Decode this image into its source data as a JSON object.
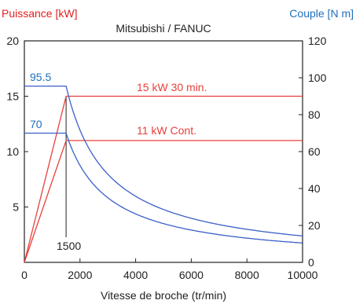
{
  "chart_data": {
    "type": "line",
    "title": "Mitsubishi / FANUC",
    "ylabel_left": "Puissance [kW]",
    "ylabel_right": "Couple [N m]",
    "xlabel": "Vitesse de broche (tr/min)",
    "xlim": [
      0,
      10000
    ],
    "ylim_left": [
      0,
      20
    ],
    "ylim_right": [
      0,
      120
    ],
    "xticks": [
      "0",
      "2000",
      "4000",
      "6000",
      "8000",
      "10000"
    ],
    "yticks_left": [
      "5",
      "10",
      "15",
      "20"
    ],
    "yticks_right": [
      "0",
      "20",
      "40",
      "60",
      "80",
      "100",
      "120"
    ],
    "grid": false,
    "colors": {
      "power": "#e8403a",
      "torque": "#3a5fc8",
      "axis": "#222222",
      "left_label": "#e02020",
      "right_label": "#1f6fc0"
    },
    "annotations": {
      "power_30min": "15 kW 30 min.",
      "power_cont": "11 kW Cont.",
      "torque_30min": "95.5",
      "torque_cont": "70",
      "base_speed": "1500"
    },
    "series": [
      {
        "name": "15 kW 30 min.",
        "axis": "left",
        "x": [
          0,
          1500,
          10000
        ],
        "y": [
          0,
          15,
          15
        ]
      },
      {
        "name": "11 kW Cont.",
        "axis": "left",
        "x": [
          0,
          1500,
          10000
        ],
        "y": [
          0,
          11,
          11
        ]
      },
      {
        "axis": "right",
        "x": [
          0,
          1500,
          2000,
          3000,
          4000,
          5000,
          6000,
          7000,
          8000,
          9000,
          10000
        ],
        "y": [
          95.5,
          95.5,
          71.6,
          47.7,
          35.8,
          28.6,
          23.9,
          20.5,
          17.9,
          15.9,
          14.3
        ]
      },
      {
        "axis": "right",
        "x": [
          0,
          1500,
          2000,
          3000,
          4000,
          5000,
          6000,
          7000,
          8000,
          9000,
          10000
        ],
        "y": [
          70,
          70,
          52.5,
          35,
          26.3,
          21,
          17.5,
          15,
          13.1,
          11.7,
          10.5
        ]
      }
    ]
  }
}
